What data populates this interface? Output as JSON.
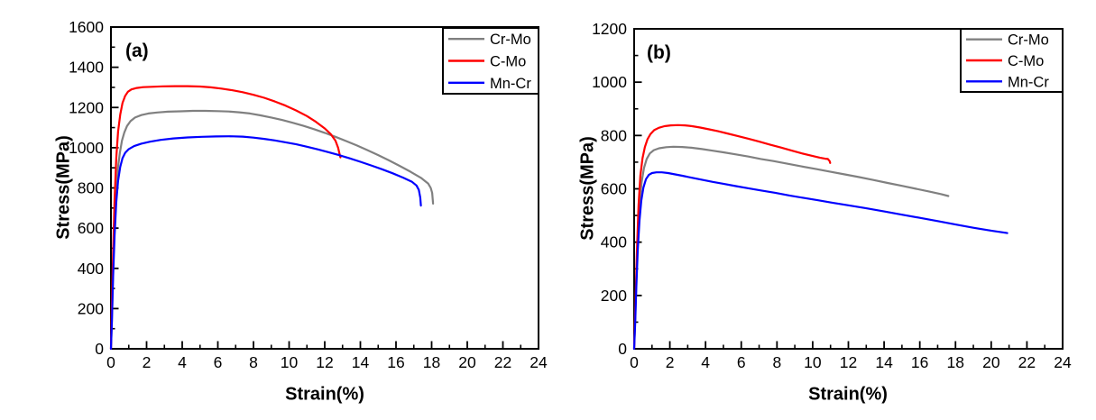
{
  "figure": {
    "background": "#ffffff",
    "axis_color": "#000000",
    "description": "Two-panel stress-strain curves"
  },
  "chart_data": [
    {
      "type": "line",
      "panel_label": "(a)",
      "xlabel": "Strain(%)",
      "ylabel": "Stress(MPa)",
      "xlim": [
        0,
        24
      ],
      "ylim": [
        0,
        1600
      ],
      "xticks": [
        0,
        2,
        4,
        6,
        8,
        10,
        12,
        14,
        16,
        18,
        20,
        22,
        24
      ],
      "yticks": [
        0,
        200,
        400,
        600,
        800,
        1000,
        1200,
        1400,
        1600
      ],
      "xtick_minor": 1,
      "ytick_minor": 100,
      "grid": false,
      "legend": {
        "position": "top-right"
      },
      "series": [
        {
          "name": "Cr-Mo",
          "color": "#808080",
          "points": [
            [
              0,
              0
            ],
            [
              0.06,
              160
            ],
            [
              0.12,
              400
            ],
            [
              0.2,
              630
            ],
            [
              0.3,
              800
            ],
            [
              0.4,
              905
            ],
            [
              0.5,
              975
            ],
            [
              0.62,
              1035
            ],
            [
              0.75,
              1075
            ],
            [
              0.9,
              1108
            ],
            [
              1.1,
              1132
            ],
            [
              1.35,
              1150
            ],
            [
              1.7,
              1162
            ],
            [
              2.1,
              1170
            ],
            [
              2.6,
              1175
            ],
            [
              3.2,
              1179
            ],
            [
              3.9,
              1181
            ],
            [
              4.6,
              1183
            ],
            [
              5.3,
              1183
            ],
            [
              6,
              1182
            ],
            [
              6.6,
              1180
            ],
            [
              7.2,
              1176
            ],
            [
              7.8,
              1170
            ],
            [
              8.4,
              1161
            ],
            [
              9,
              1150
            ],
            [
              9.6,
              1138
            ],
            [
              10.2,
              1124
            ],
            [
              10.8,
              1109
            ],
            [
              11.4,
              1092
            ],
            [
              12,
              1074
            ],
            [
              12.6,
              1054
            ],
            [
              13.2,
              1033
            ],
            [
              13.8,
              1011
            ],
            [
              14.4,
              988
            ],
            [
              15,
              963
            ],
            [
              15.6,
              937
            ],
            [
              16.2,
              910
            ],
            [
              16.8,
              881
            ],
            [
              17.4,
              850
            ],
            [
              17.8,
              822
            ],
            [
              17.95,
              800
            ],
            [
              18.03,
              775
            ],
            [
              18.08,
              722
            ]
          ]
        },
        {
          "name": "C-Mo",
          "color": "#ff0000",
          "points": [
            [
              0,
              0
            ],
            [
              0.05,
              200
            ],
            [
              0.12,
              480
            ],
            [
              0.2,
              740
            ],
            [
              0.3,
              950
            ],
            [
              0.4,
              1080
            ],
            [
              0.52,
              1165
            ],
            [
              0.65,
              1222
            ],
            [
              0.8,
              1258
            ],
            [
              0.95,
              1278
            ],
            [
              1.15,
              1290
            ],
            [
              1.45,
              1297
            ],
            [
              1.8,
              1301
            ],
            [
              2.3,
              1303
            ],
            [
              2.9,
              1305
            ],
            [
              3.6,
              1306
            ],
            [
              4.3,
              1306
            ],
            [
              5,
              1304
            ],
            [
              5.6,
              1300
            ],
            [
              6.2,
              1294
            ],
            [
              6.8,
              1286
            ],
            [
              7.4,
              1276
            ],
            [
              8,
              1263
            ],
            [
              8.6,
              1248
            ],
            [
              9.2,
              1230
            ],
            [
              9.8,
              1209
            ],
            [
              10.4,
              1185
            ],
            [
              11,
              1157
            ],
            [
              11.5,
              1129
            ],
            [
              12,
              1096
            ],
            [
              12.35,
              1066
            ],
            [
              12.6,
              1035
            ],
            [
              12.75,
              1000
            ],
            [
              12.85,
              962
            ],
            [
              12.88,
              952
            ]
          ]
        },
        {
          "name": "Mn-Cr",
          "color": "#0000ff",
          "points": [
            [
              0,
              0
            ],
            [
              0.05,
              130
            ],
            [
              0.12,
              360
            ],
            [
              0.2,
              560
            ],
            [
              0.3,
              730
            ],
            [
              0.4,
              835
            ],
            [
              0.52,
              905
            ],
            [
              0.65,
              948
            ],
            [
              0.8,
              975
            ],
            [
              1.0,
              993
            ],
            [
              1.3,
              1008
            ],
            [
              1.7,
              1020
            ],
            [
              2.2,
              1030
            ],
            [
              2.8,
              1039
            ],
            [
              3.5,
              1046
            ],
            [
              4.3,
              1051
            ],
            [
              5.1,
              1054
            ],
            [
              5.9,
              1056
            ],
            [
              6.7,
              1057
            ],
            [
              7.4,
              1055
            ],
            [
              8,
              1050
            ],
            [
              8.6,
              1044
            ],
            [
              9.2,
              1036
            ],
            [
              9.8,
              1027
            ],
            [
              10.4,
              1017
            ],
            [
              11,
              1005
            ],
            [
              11.6,
              992
            ],
            [
              12.2,
              978
            ],
            [
              12.8,
              963
            ],
            [
              13.4,
              947
            ],
            [
              14,
              930
            ],
            [
              14.6,
              912
            ],
            [
              15.2,
              893
            ],
            [
              15.8,
              873
            ],
            [
              16.4,
              851
            ],
            [
              16.9,
              830
            ],
            [
              17.15,
              812
            ],
            [
              17.28,
              790
            ],
            [
              17.36,
              752
            ],
            [
              17.4,
              712
            ]
          ]
        }
      ]
    },
    {
      "type": "line",
      "panel_label": "(b)",
      "xlabel": "Strain(%)",
      "ylabel": "Stress(MPa)",
      "xlim": [
        0,
        24
      ],
      "ylim": [
        0,
        1200
      ],
      "xticks": [
        0,
        2,
        4,
        6,
        8,
        10,
        12,
        14,
        16,
        18,
        20,
        22,
        24
      ],
      "yticks": [
        0,
        200,
        400,
        600,
        800,
        1000,
        1200
      ],
      "xtick_minor": 1,
      "ytick_minor": 100,
      "grid": false,
      "legend": {
        "position": "top-right"
      },
      "series": [
        {
          "name": "Cr-Mo",
          "color": "#808080",
          "points": [
            [
              0,
              0
            ],
            [
              0.07,
              140
            ],
            [
              0.14,
              300
            ],
            [
              0.22,
              440
            ],
            [
              0.32,
              550
            ],
            [
              0.42,
              625
            ],
            [
              0.55,
              678
            ],
            [
              0.7,
              712
            ],
            [
              0.88,
              733
            ],
            [
              1.1,
              745
            ],
            [
              1.4,
              752
            ],
            [
              1.8,
              756
            ],
            [
              2.2,
              758
            ],
            [
              2.7,
              757
            ],
            [
              3.2,
              754
            ],
            [
              3.8,
              749
            ],
            [
              4.4,
              743
            ],
            [
              5,
              737
            ],
            [
              5.7,
              729
            ],
            [
              6.4,
              721
            ],
            [
              7.1,
              712
            ],
            [
              7.8,
              704
            ],
            [
              8.6,
              694
            ],
            [
              9.4,
              684
            ],
            [
              10.2,
              674
            ],
            [
              11,
              664
            ],
            [
              11.8,
              654
            ],
            [
              12.6,
              644
            ],
            [
              13.4,
              633
            ],
            [
              14.2,
              622
            ],
            [
              15,
              611
            ],
            [
              15.8,
              600
            ],
            [
              16.6,
              589
            ],
            [
              17.2,
              580
            ],
            [
              17.6,
              573
            ]
          ]
        },
        {
          "name": "C-Mo",
          "color": "#ff0000",
          "points": [
            [
              0,
              0
            ],
            [
              0.07,
              160
            ],
            [
              0.15,
              360
            ],
            [
              0.25,
              540
            ],
            [
              0.35,
              650
            ],
            [
              0.47,
              715
            ],
            [
              0.6,
              757
            ],
            [
              0.75,
              786
            ],
            [
              0.92,
              806
            ],
            [
              1.12,
              820
            ],
            [
              1.38,
              829
            ],
            [
              1.7,
              835
            ],
            [
              2.05,
              838
            ],
            [
              2.45,
              839
            ],
            [
              2.85,
              838
            ],
            [
              3.25,
              835
            ],
            [
              3.7,
              830
            ],
            [
              4.2,
              823
            ],
            [
              4.7,
              816
            ],
            [
              5.2,
              808
            ],
            [
              5.8,
              798
            ],
            [
              6.4,
              788
            ],
            [
              7,
              777
            ],
            [
              7.6,
              766
            ],
            [
              8.2,
              755
            ],
            [
              8.8,
              744
            ],
            [
              9.4,
              733
            ],
            [
              10,
              723
            ],
            [
              10.4,
              717
            ],
            [
              10.7,
              713
            ],
            [
              10.85,
              712
            ],
            [
              10.95,
              704
            ],
            [
              10.98,
              697
            ]
          ]
        },
        {
          "name": "Mn-Cr",
          "color": "#0000ff",
          "points": [
            [
              0,
              0
            ],
            [
              0.06,
              100
            ],
            [
              0.12,
              230
            ],
            [
              0.2,
              370
            ],
            [
              0.3,
              480
            ],
            [
              0.4,
              555
            ],
            [
              0.52,
              605
            ],
            [
              0.66,
              636
            ],
            [
              0.82,
              652
            ],
            [
              1.0,
              659
            ],
            [
              1.25,
              662
            ],
            [
              1.55,
              662
            ],
            [
              1.9,
              659
            ],
            [
              2.3,
              654
            ],
            [
              2.7,
              649
            ],
            [
              3.2,
              642
            ],
            [
              3.8,
              634
            ],
            [
              4.4,
              626
            ],
            [
              5,
              619
            ],
            [
              5.7,
              610
            ],
            [
              6.4,
              602
            ],
            [
              7.1,
              594
            ],
            [
              7.9,
              585
            ],
            [
              8.7,
              575
            ],
            [
              9.5,
              566
            ],
            [
              10.3,
              557
            ],
            [
              11.1,
              548
            ],
            [
              12,
              538
            ],
            [
              13,
              527
            ],
            [
              14,
              515
            ],
            [
              15,
              503
            ],
            [
              16,
              491
            ],
            [
              17,
              479
            ],
            [
              18,
              466
            ],
            [
              19,
              454
            ],
            [
              20,
              443
            ],
            [
              20.6,
              437
            ],
            [
              20.9,
              434
            ]
          ]
        }
      ]
    }
  ]
}
